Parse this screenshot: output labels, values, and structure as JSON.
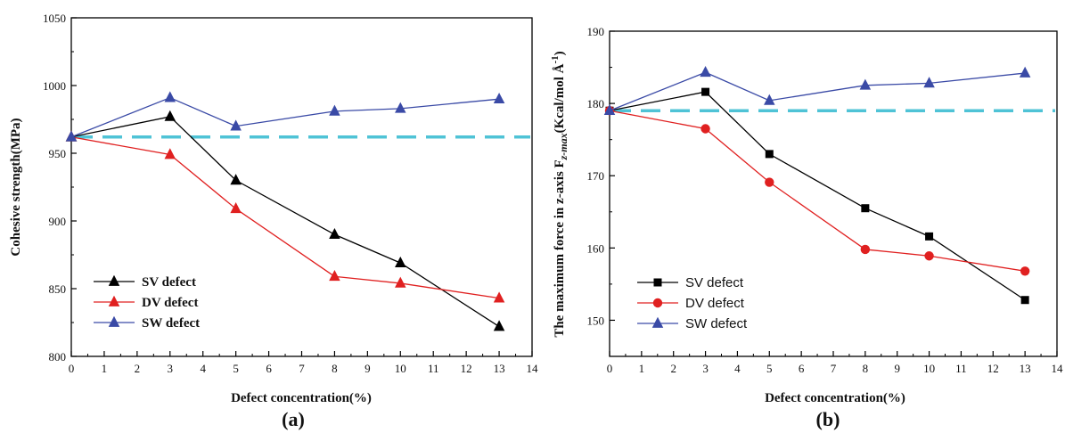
{
  "chart_data": [
    {
      "type": "line",
      "panel_label": "(a)",
      "xlabel": "Defect concentration(%)",
      "ylabel": "Cohesive strength(MPa)",
      "xlim": [
        0,
        14
      ],
      "ylim": [
        800,
        1050
      ],
      "x_ticks": [
        0,
        1,
        2,
        3,
        4,
        5,
        6,
        7,
        8,
        9,
        10,
        11,
        12,
        13,
        14
      ],
      "y_ticks": [
        800,
        850,
        900,
        950,
        1000,
        1050
      ],
      "x": [
        0,
        3,
        5,
        8,
        10,
        13
      ],
      "legend_placement": "lower-left",
      "series": [
        {
          "name": "SV defect",
          "color": "#000000",
          "marker": "triangle",
          "values": [
            962,
            977,
            930,
            890,
            869,
            822
          ]
        },
        {
          "name": "DV defect",
          "color": "#e02020",
          "marker": "triangle",
          "values": [
            962,
            949,
            909,
            859,
            854,
            843
          ]
        },
        {
          "name": "SW defect",
          "color": "#3a4aa6",
          "marker": "triangle",
          "values": [
            962,
            991,
            970,
            981,
            983,
            990
          ]
        }
      ],
      "reference_line": {
        "value": 962,
        "color": "#4fc3d6",
        "style": "dashed"
      }
    },
    {
      "type": "line",
      "panel_label": "(b)",
      "xlabel": "Defect concentration(%)",
      "ylabel": "The maximum force in z-axis F",
      "ylabel_subscript": "z-max",
      "ylabel_unit": "(Kcal/mol Å",
      "ylabel_unit_exp": "-1",
      "ylabel_unit_close": ")",
      "xlim": [
        0,
        14
      ],
      "ylim": [
        145,
        190
      ],
      "x_ticks": [
        0,
        1,
        2,
        3,
        4,
        5,
        6,
        7,
        8,
        9,
        10,
        11,
        12,
        13,
        14
      ],
      "y_ticks": [
        150,
        160,
        170,
        180,
        190
      ],
      "x": [
        0,
        3,
        5,
        8,
        10,
        13
      ],
      "legend_placement": "lower-left",
      "series": [
        {
          "name": "SV defect",
          "color": "#000000",
          "marker": "square",
          "values": [
            179,
            181.6,
            173,
            165.5,
            161.6,
            152.8
          ]
        },
        {
          "name": "DV defect",
          "color": "#e02020",
          "marker": "circle",
          "values": [
            179,
            176.5,
            169.1,
            159.8,
            158.9,
            156.8
          ]
        },
        {
          "name": "SW defect",
          "color": "#3a4aa6",
          "marker": "triangle",
          "values": [
            179,
            184.3,
            180.4,
            182.5,
            182.8,
            184.2
          ]
        }
      ],
      "reference_line": {
        "value": 179,
        "color": "#4fc3d6",
        "style": "dashed"
      }
    }
  ]
}
